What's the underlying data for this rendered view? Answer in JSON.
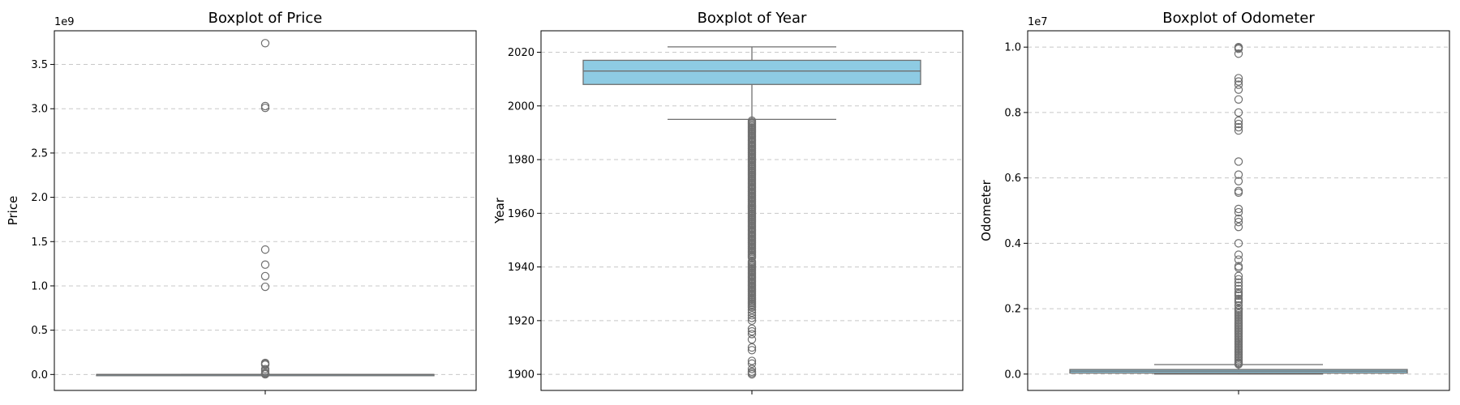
{
  "colors": {
    "box_fill": "#8ecbe3",
    "box_edge": "#6f6f6f",
    "grid": "#c8c8c8",
    "outlier_edge": "#6f6f6f"
  },
  "chart_data": [
    {
      "type": "boxplot",
      "title": "Boxplot of Price",
      "xlabel": "",
      "ylabel": "Price",
      "offset_label": "1e9",
      "ylim": [
        -0.18,
        3.88
      ],
      "yticks": [
        0.0,
        0.5,
        1.0,
        1.5,
        2.0,
        2.5,
        3.0,
        3.5
      ],
      "ytick_labels": [
        "0.0",
        "0.5",
        "1.0",
        "1.5",
        "2.0",
        "2.5",
        "3.0",
        "3.5"
      ],
      "grid": true,
      "box": {
        "q1": 0.0,
        "median": 0.0,
        "q3": 0.0,
        "whisker_low": 0.0,
        "whisker_high": 0.0
      },
      "outliers": [
        3.74,
        3.03,
        3.01,
        1.41,
        1.24,
        1.11,
        0.99,
        0.13,
        0.12,
        0.11,
        0.06,
        0.04,
        0.02,
        0.01,
        0.005,
        0.002
      ]
    },
    {
      "type": "boxplot",
      "title": "Boxplot of Year",
      "xlabel": "",
      "ylabel": "Year",
      "offset_label": "",
      "ylim": [
        1894,
        2028
      ],
      "yticks": [
        1900,
        1920,
        1940,
        1960,
        1980,
        2000,
        2020
      ],
      "ytick_labels": [
        "1900",
        "1920",
        "1940",
        "1960",
        "1980",
        "2000",
        "2020"
      ],
      "grid": true,
      "box": {
        "q1": 2008,
        "median": 2013,
        "q3": 2017,
        "whisker_low": 1995,
        "whisker_high": 2022
      },
      "outliers": [
        1994.5,
        1994,
        1993.5,
        1993,
        1992.5,
        1992,
        1991.5,
        1991,
        1990.5,
        1990,
        1989.5,
        1989,
        1988.5,
        1988,
        1987.5,
        1987,
        1986.5,
        1986,
        1985.5,
        1985,
        1984.5,
        1984,
        1983.5,
        1983,
        1982.5,
        1982,
        1981.5,
        1981,
        1980.5,
        1980,
        1979.5,
        1979,
        1978.5,
        1978,
        1977.5,
        1977,
        1976.5,
        1976,
        1975.5,
        1975,
        1974.5,
        1974,
        1973.5,
        1973,
        1972.5,
        1972,
        1971.5,
        1971,
        1970.5,
        1970,
        1969.5,
        1969,
        1968.5,
        1968,
        1967.5,
        1967,
        1966.5,
        1966,
        1965.5,
        1965,
        1964.5,
        1964,
        1963.5,
        1963,
        1962.5,
        1962,
        1961.5,
        1961,
        1960.5,
        1960,
        1959.5,
        1959,
        1958.5,
        1958,
        1957.5,
        1957,
        1956.5,
        1956,
        1955.5,
        1955,
        1954.5,
        1954,
        1953.5,
        1953,
        1952.5,
        1952,
        1951.5,
        1951,
        1950.5,
        1950,
        1949.5,
        1949,
        1948.5,
        1948,
        1947.5,
        1947,
        1946.5,
        1946,
        1945.5,
        1945,
        1944.5,
        1944,
        1943.5,
        1942,
        1941.5,
        1941,
        1940.5,
        1940,
        1939.5,
        1939,
        1938.5,
        1938,
        1937.5,
        1937,
        1936.5,
        1936,
        1935.5,
        1935,
        1934.5,
        1934,
        1933.5,
        1933,
        1932.5,
        1932,
        1931.5,
        1931,
        1930.5,
        1930,
        1929.5,
        1929,
        1928.5,
        1928,
        1927.5,
        1927,
        1926.5,
        1926,
        1925.5,
        1925,
        1924,
        1923,
        1922,
        1921,
        1920,
        1917,
        1916,
        1915,
        1913,
        1910,
        1909,
        1905,
        1904,
        1902,
        1901,
        1900.5,
        1900
      ]
    },
    {
      "type": "boxplot",
      "title": "Boxplot of Odometer",
      "xlabel": "",
      "ylabel": "Odometer",
      "offset_label": "1e7",
      "ylim": [
        -0.05,
        1.05
      ],
      "yticks": [
        0.0,
        0.2,
        0.4,
        0.6,
        0.8,
        1.0
      ],
      "ytick_labels": [
        "0.0",
        "0.2",
        "0.4",
        "0.6",
        "0.8",
        "1.0"
      ],
      "grid": true,
      "box": {
        "q1": 0.003,
        "median": 0.009,
        "q3": 0.014,
        "whisker_low": 0.0,
        "whisker_high": 0.029
      },
      "outliers": [
        1.0,
        0.998,
        0.995,
        0.98,
        0.905,
        0.895,
        0.885,
        0.87,
        0.84,
        0.8,
        0.775,
        0.765,
        0.755,
        0.745,
        0.65,
        0.61,
        0.59,
        0.56,
        0.555,
        0.505,
        0.495,
        0.475,
        0.465,
        0.45,
        0.4,
        0.365,
        0.35,
        0.33,
        0.325,
        0.3,
        0.29,
        0.28,
        0.27,
        0.26,
        0.25,
        0.245,
        0.24,
        0.23,
        0.225,
        0.22,
        0.21,
        0.2,
        0.195,
        0.19,
        0.185,
        0.18,
        0.175,
        0.17,
        0.165,
        0.16,
        0.155,
        0.15,
        0.145,
        0.14,
        0.135,
        0.13,
        0.125,
        0.12,
        0.115,
        0.11,
        0.105,
        0.1,
        0.095,
        0.09,
        0.085,
        0.08,
        0.075,
        0.07,
        0.065,
        0.06,
        0.055,
        0.05,
        0.045,
        0.04,
        0.035,
        0.032,
        0.03
      ]
    }
  ]
}
